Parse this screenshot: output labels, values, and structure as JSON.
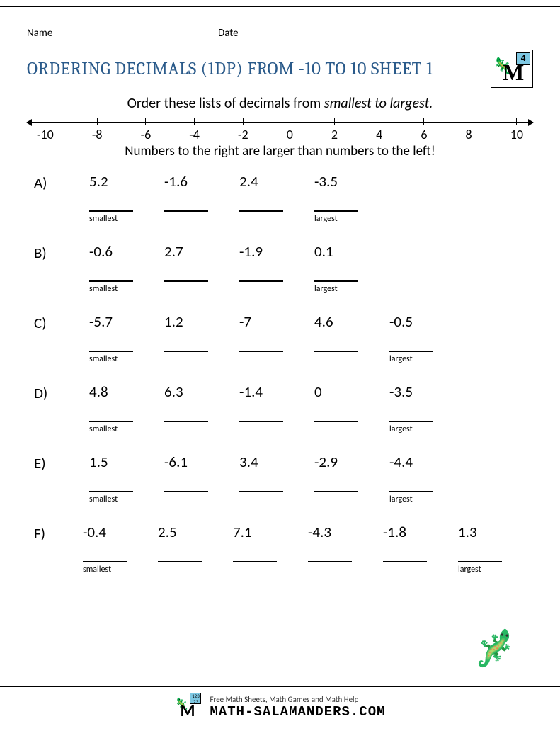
{
  "header": {
    "name_label": "Name",
    "date_label": "Date"
  },
  "title": "ORDERING DECIMALS (1DP) FROM -10 TO 10 SHEET 1",
  "logo": {
    "badge": "4"
  },
  "instruction_prefix": "Order these lists of decimals from ",
  "instruction_em": "smallest to largest.",
  "numberline": {
    "ticks": [
      "-10",
      "-8",
      "-6",
      "-4",
      "-2",
      "0",
      "2",
      "4",
      "6",
      "8",
      "10"
    ]
  },
  "hint": "Numbers to the right are larger than numbers to the left!",
  "labels": {
    "smallest": "smallest",
    "largest": "largest"
  },
  "problems": [
    {
      "letter": "A)",
      "values": [
        "5.2",
        "-1.6",
        "2.4",
        "-3.5"
      ]
    },
    {
      "letter": "B)",
      "values": [
        "-0.6",
        "2.7",
        "-1.9",
        "0.1"
      ]
    },
    {
      "letter": "C)",
      "values": [
        "-5.7",
        "1.2",
        "-7",
        "4.6",
        "-0.5"
      ]
    },
    {
      "letter": "D)",
      "values": [
        "4.8",
        "6.3",
        "-1.4",
        "0",
        "-3.5"
      ]
    },
    {
      "letter": "E)",
      "values": [
        "1.5",
        "-6.1",
        "3.4",
        "-2.9",
        "-4.4"
      ]
    },
    {
      "letter": "F)",
      "values": [
        "-0.4",
        "2.5",
        "7.1",
        "-4.3",
        "-1.8",
        "1.3"
      ]
    }
  ],
  "footer": {
    "line1": "Free Math Sheets, Math Games and Math Help",
    "line2": "MATH-SALAMANDERS.COM",
    "badge": "123\n23"
  },
  "colors": {
    "title_color": "#2a5a8a",
    "background": "#ffffff",
    "text": "#000000"
  }
}
